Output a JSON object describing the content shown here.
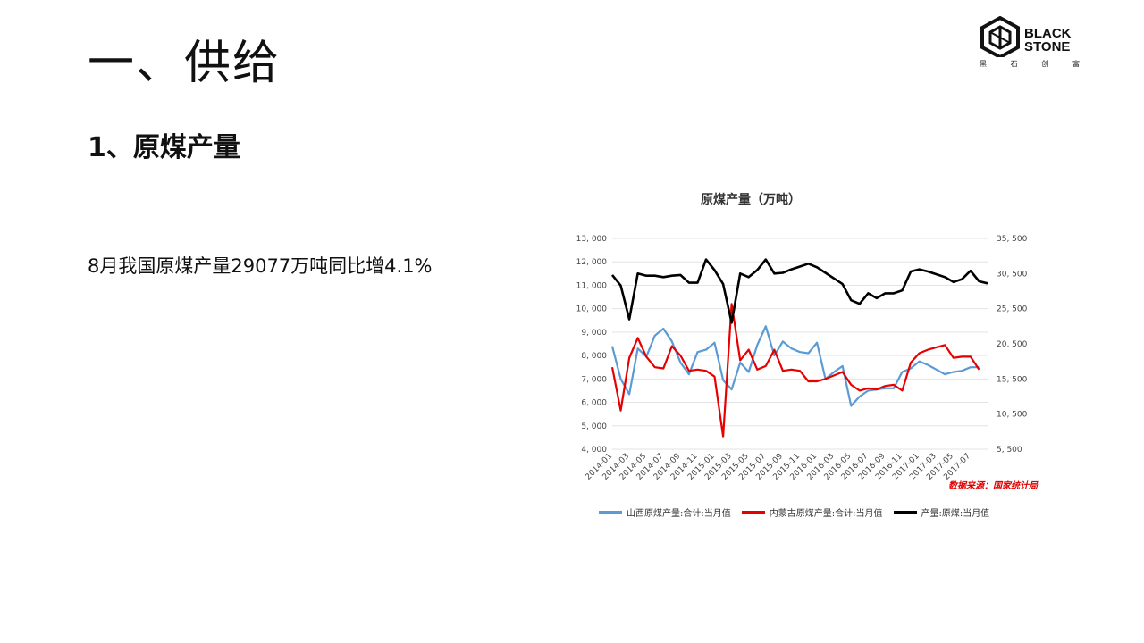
{
  "slide": {
    "title": "一、供给",
    "subtitle": "1、原煤产量",
    "body": "8月我国原煤产量29077万吨同比增4.1%"
  },
  "logo": {
    "line1": "BLACK",
    "line2": "STONE",
    "sub": [
      "黑",
      "石",
      "创",
      "富"
    ]
  },
  "chart_data": {
    "type": "line",
    "title": "原煤产量（万吨）",
    "source": "数据来源：国家统计局",
    "x_ticks": [
      "2014-01",
      "2014-03",
      "2014-05",
      "2014-07",
      "2014-09",
      "2014-11",
      "2015-01",
      "2015-03",
      "2015-05",
      "2015-07",
      "2015-09",
      "2015-11",
      "2016-01",
      "2016-03",
      "2016-05",
      "2016-07",
      "2016-09",
      "2016-11",
      "2017-01",
      "2017-03",
      "2017-05",
      "2017-07"
    ],
    "left_axis": {
      "min": 4000,
      "max": 13000,
      "step": 1000,
      "ticks": [
        "4, 000",
        "5, 000",
        "6, 000",
        "7, 000",
        "8, 000",
        "9, 000",
        "10, 000",
        "11, 000",
        "12, 000",
        "13, 000"
      ]
    },
    "right_axis": {
      "min": 5500,
      "max": 35500,
      "step": 5000,
      "ticks": [
        "5, 500",
        "10, 500",
        "15, 500",
        "20, 500",
        "25, 500",
        "30, 500",
        "35, 500"
      ]
    },
    "grid": true,
    "legend_position": "bottom",
    "series": [
      {
        "name": "山西原煤产量:合计:当月值",
        "color": "#5b9bd5",
        "axis": "left",
        "points": [
          [
            1,
            8400
          ],
          [
            2,
            7000
          ],
          [
            3,
            6350
          ],
          [
            4,
            8300
          ],
          [
            5,
            7950
          ],
          [
            6,
            8850
          ],
          [
            7,
            9150
          ],
          [
            8,
            8600
          ],
          [
            9,
            7700
          ],
          [
            10,
            7200
          ],
          [
            11,
            8150
          ],
          [
            12,
            8250
          ],
          [
            13,
            8550
          ],
          [
            14,
            6950
          ],
          [
            15,
            6550
          ],
          [
            16,
            7700
          ],
          [
            17,
            7300
          ],
          [
            18,
            8450
          ],
          [
            19,
            9250
          ],
          [
            20,
            8000
          ],
          [
            21,
            8600
          ],
          [
            22,
            8300
          ],
          [
            23,
            8150
          ],
          [
            24,
            8100
          ],
          [
            25,
            8550
          ],
          [
            26,
            7000
          ],
          [
            27,
            7300
          ],
          [
            28,
            7550
          ],
          [
            29,
            5850
          ],
          [
            30,
            6250
          ],
          [
            31,
            6500
          ],
          [
            32,
            6550
          ],
          [
            33,
            6600
          ],
          [
            34,
            6600
          ],
          [
            35,
            7300
          ],
          [
            36,
            7450
          ],
          [
            37,
            7750
          ],
          [
            38,
            7600
          ],
          [
            39,
            7400
          ],
          [
            40,
            7200
          ],
          [
            41,
            7300
          ],
          [
            42,
            7350
          ],
          [
            43,
            7500
          ],
          [
            44,
            7500
          ]
        ]
      },
      {
        "name": "内蒙古原煤产量:合计:当月值",
        "color": "#e60000",
        "axis": "left",
        "points": [
          [
            1,
            7500
          ],
          [
            2,
            5650
          ],
          [
            3,
            7900
          ],
          [
            4,
            8750
          ],
          [
            5,
            7950
          ],
          [
            6,
            7500
          ],
          [
            7,
            7450
          ],
          [
            8,
            8400
          ],
          [
            9,
            8000
          ],
          [
            10,
            7350
          ],
          [
            11,
            7400
          ],
          [
            12,
            7350
          ],
          [
            13,
            7100
          ],
          [
            14,
            4550
          ],
          [
            15,
            10200
          ],
          [
            16,
            7800
          ],
          [
            17,
            8250
          ],
          [
            18,
            7400
          ],
          [
            19,
            7550
          ],
          [
            20,
            8250
          ],
          [
            21,
            7350
          ],
          [
            22,
            7400
          ],
          [
            23,
            7350
          ],
          [
            24,
            6900
          ],
          [
            25,
            6900
          ],
          [
            26,
            7000
          ],
          [
            27,
            7150
          ],
          [
            28,
            7300
          ],
          [
            29,
            6750
          ],
          [
            30,
            6500
          ],
          [
            31,
            6600
          ],
          [
            32,
            6550
          ],
          [
            33,
            6700
          ],
          [
            34,
            6750
          ],
          [
            35,
            6500
          ],
          [
            36,
            7700
          ],
          [
            37,
            8100
          ],
          [
            38,
            8250
          ],
          [
            39,
            8350
          ],
          [
            40,
            8450
          ],
          [
            41,
            7900
          ],
          [
            42,
            7950
          ],
          [
            43,
            7950
          ],
          [
            44,
            7400
          ]
        ]
      },
      {
        "name": "产量:原煤:当月值",
        "color": "#000000",
        "axis": "right",
        "points": [
          [
            1,
            30300
          ],
          [
            2,
            28800
          ],
          [
            3,
            24000
          ],
          [
            4,
            30500
          ],
          [
            5,
            30200
          ],
          [
            6,
            30200
          ],
          [
            7,
            30000
          ],
          [
            8,
            30200
          ],
          [
            9,
            30300
          ],
          [
            10,
            29200
          ],
          [
            11,
            29200
          ],
          [
            12,
            32500
          ],
          [
            13,
            31000
          ],
          [
            14,
            29000
          ],
          [
            15,
            23500
          ],
          [
            16,
            30500
          ],
          [
            17,
            30000
          ],
          [
            18,
            31000
          ],
          [
            19,
            32500
          ],
          [
            20,
            30500
          ],
          [
            21,
            30600
          ],
          [
            22,
            31100
          ],
          [
            23,
            31500
          ],
          [
            24,
            31900
          ],
          [
            25,
            31400
          ],
          [
            26,
            30600
          ],
          [
            27,
            29800
          ],
          [
            28,
            29000
          ],
          [
            29,
            26700
          ],
          [
            30,
            26200
          ],
          [
            31,
            27700
          ],
          [
            32,
            27000
          ],
          [
            33,
            27700
          ],
          [
            34,
            27700
          ],
          [
            35,
            28100
          ],
          [
            36,
            30800
          ],
          [
            37,
            31100
          ],
          [
            38,
            30800
          ],
          [
            39,
            30400
          ],
          [
            40,
            30000
          ],
          [
            41,
            29300
          ],
          [
            42,
            29700
          ],
          [
            43,
            30900
          ],
          [
            44,
            29400
          ],
          [
            45,
            29100
          ]
        ]
      }
    ]
  }
}
